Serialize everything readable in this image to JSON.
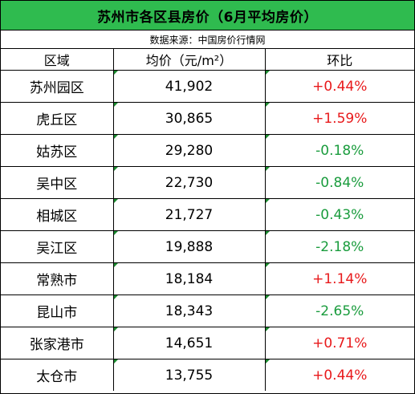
{
  "title": "苏州市各区县房价（6月平均房价）",
  "source": "数据来源：中国房价行情网",
  "headers": {
    "region": "区域",
    "price": "均价（元/m²）",
    "change": "环比"
  },
  "rows": [
    {
      "region": "苏州园区",
      "price": "41,902",
      "change": "+0.44%",
      "direction": "up"
    },
    {
      "region": "虎丘区",
      "price": "30,865",
      "change": "+1.59%",
      "direction": "up"
    },
    {
      "region": "姑苏区",
      "price": "29,280",
      "change": "-0.18%",
      "direction": "down"
    },
    {
      "region": "吴中区",
      "price": "22,730",
      "change": "-0.84%",
      "direction": "down"
    },
    {
      "region": "相城区",
      "price": "21,727",
      "change": "-0.43%",
      "direction": "down"
    },
    {
      "region": "吴江区",
      "price": "19,888",
      "change": "-2.18%",
      "direction": "down"
    },
    {
      "region": "常熟市",
      "price": "18,184",
      "change": "+1.14%",
      "direction": "up"
    },
    {
      "region": "昆山市",
      "price": "18,343",
      "change": "-2.65%",
      "direction": "down"
    },
    {
      "region": "张家港市",
      "price": "14,651",
      "change": "+0.71%",
      "direction": "up"
    },
    {
      "region": "太仓市",
      "price": "13,755",
      "change": "+0.44%",
      "direction": "up"
    }
  ],
  "colors": {
    "title_bg": "#2fbb4f",
    "up": "#e8191b",
    "down": "#1a9c3d"
  }
}
